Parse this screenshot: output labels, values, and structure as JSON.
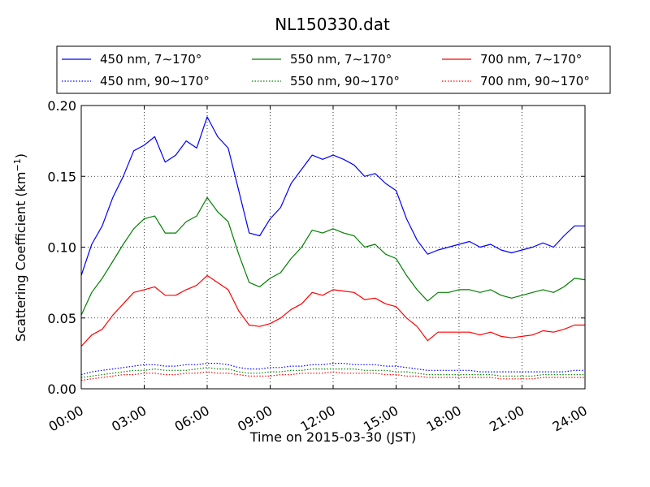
{
  "chart_data": {
    "type": "line",
    "title": "NL150330.dat",
    "xlabel": "Time on 2015-03-30 (JST)",
    "ylabel": "Scattering Coefficient (km",
    "ylabel_sup": "−1",
    "ylabel_close": ")",
    "xlim": [
      0,
      24
    ],
    "ylim": [
      0,
      0.2
    ],
    "x_unit": "hours",
    "grid": true,
    "grid_style": "dotted",
    "legend_position": "top",
    "x_ticks": [
      {
        "value": 0,
        "label": "00:00"
      },
      {
        "value": 3,
        "label": "03:00"
      },
      {
        "value": 6,
        "label": "06:00"
      },
      {
        "value": 9,
        "label": "09:00"
      },
      {
        "value": 12,
        "label": "12:00"
      },
      {
        "value": 15,
        "label": "15:00"
      },
      {
        "value": 18,
        "label": "18:00"
      },
      {
        "value": 21,
        "label": "21:00"
      },
      {
        "value": 24,
        "label": "24:00"
      }
    ],
    "y_ticks": [
      {
        "value": 0,
        "label": "0.00"
      },
      {
        "value": 0.05,
        "label": "0.05"
      },
      {
        "value": 0.1,
        "label": "0.10"
      },
      {
        "value": 0.15,
        "label": "0.15"
      },
      {
        "value": 0.2,
        "label": "0.20"
      }
    ],
    "x": [
      0,
      0.5,
      1,
      1.5,
      2,
      2.5,
      3,
      3.5,
      4,
      4.5,
      5,
      5.5,
      6,
      6.5,
      7,
      7.5,
      8,
      8.5,
      9,
      9.5,
      10,
      10.5,
      11,
      11.5,
      12,
      12.5,
      13,
      13.5,
      14,
      14.5,
      15,
      15.5,
      16,
      16.5,
      17,
      17.5,
      18,
      18.5,
      19,
      19.5,
      20,
      20.5,
      21,
      21.5,
      22,
      22.5,
      23,
      23.5,
      24
    ],
    "series": [
      {
        "name": "450 nm, 7∼170°",
        "color": "#0000ff",
        "style": "solid",
        "values": [
          0.08,
          0.102,
          0.115,
          0.135,
          0.15,
          0.168,
          0.172,
          0.178,
          0.16,
          0.165,
          0.175,
          0.17,
          0.192,
          0.178,
          0.17,
          0.14,
          0.11,
          0.108,
          0.12,
          0.128,
          0.145,
          0.155,
          0.165,
          0.162,
          0.165,
          0.162,
          0.158,
          0.15,
          0.152,
          0.145,
          0.14,
          0.12,
          0.105,
          0.095,
          0.098,
          0.1,
          0.102,
          0.104,
          0.1,
          0.102,
          0.098,
          0.096,
          0.098,
          0.1,
          0.103,
          0.1,
          0.108,
          0.115,
          0.115
        ]
      },
      {
        "name": "550 nm, 7∼170°",
        "color": "#008000",
        "style": "solid",
        "values": [
          0.052,
          0.068,
          0.078,
          0.09,
          0.102,
          0.113,
          0.12,
          0.122,
          0.11,
          0.11,
          0.118,
          0.122,
          0.135,
          0.125,
          0.118,
          0.095,
          0.075,
          0.072,
          0.078,
          0.082,
          0.092,
          0.1,
          0.112,
          0.11,
          0.113,
          0.11,
          0.108,
          0.1,
          0.102,
          0.095,
          0.092,
          0.08,
          0.07,
          0.062,
          0.068,
          0.068,
          0.07,
          0.07,
          0.068,
          0.07,
          0.066,
          0.064,
          0.066,
          0.068,
          0.07,
          0.068,
          0.072,
          0.078,
          0.077
        ]
      },
      {
        "name": "700 nm, 7∼170°",
        "color": "#ff0000",
        "style": "solid",
        "values": [
          0.03,
          0.038,
          0.042,
          0.052,
          0.06,
          0.068,
          0.07,
          0.072,
          0.066,
          0.066,
          0.07,
          0.073,
          0.08,
          0.075,
          0.07,
          0.055,
          0.045,
          0.044,
          0.046,
          0.05,
          0.056,
          0.06,
          0.068,
          0.066,
          0.07,
          0.069,
          0.068,
          0.063,
          0.064,
          0.06,
          0.058,
          0.05,
          0.044,
          0.034,
          0.04,
          0.04,
          0.04,
          0.04,
          0.038,
          0.04,
          0.037,
          0.036,
          0.037,
          0.038,
          0.041,
          0.04,
          0.042,
          0.045,
          0.045
        ]
      },
      {
        "name": "450 nm, 90∼170°",
        "color": "#0000ff",
        "style": "dotted",
        "values": [
          0.01,
          0.012,
          0.013,
          0.014,
          0.015,
          0.016,
          0.017,
          0.017,
          0.016,
          0.016,
          0.017,
          0.017,
          0.018,
          0.018,
          0.017,
          0.015,
          0.014,
          0.014,
          0.015,
          0.015,
          0.016,
          0.016,
          0.017,
          0.017,
          0.018,
          0.018,
          0.017,
          0.017,
          0.017,
          0.016,
          0.016,
          0.015,
          0.014,
          0.013,
          0.013,
          0.013,
          0.013,
          0.013,
          0.012,
          0.012,
          0.012,
          0.012,
          0.012,
          0.012,
          0.012,
          0.012,
          0.012,
          0.013,
          0.013
        ]
      },
      {
        "name": "550 nm, 90∼170°",
        "color": "#008000",
        "style": "dotted",
        "values": [
          0.008,
          0.009,
          0.01,
          0.011,
          0.012,
          0.013,
          0.013,
          0.014,
          0.013,
          0.013,
          0.013,
          0.014,
          0.015,
          0.014,
          0.014,
          0.012,
          0.011,
          0.011,
          0.012,
          0.012,
          0.013,
          0.013,
          0.014,
          0.014,
          0.014,
          0.014,
          0.014,
          0.013,
          0.013,
          0.013,
          0.012,
          0.012,
          0.011,
          0.01,
          0.01,
          0.01,
          0.01,
          0.01,
          0.01,
          0.01,
          0.009,
          0.009,
          0.009,
          0.009,
          0.01,
          0.01,
          0.01,
          0.01,
          0.01
        ]
      },
      {
        "name": "700 nm, 90∼170°",
        "color": "#ff0000",
        "style": "dotted",
        "values": [
          0.006,
          0.007,
          0.008,
          0.009,
          0.01,
          0.01,
          0.011,
          0.011,
          0.01,
          0.01,
          0.011,
          0.011,
          0.012,
          0.011,
          0.011,
          0.01,
          0.009,
          0.009,
          0.009,
          0.01,
          0.01,
          0.011,
          0.011,
          0.011,
          0.012,
          0.011,
          0.011,
          0.011,
          0.011,
          0.01,
          0.01,
          0.009,
          0.009,
          0.008,
          0.008,
          0.008,
          0.008,
          0.008,
          0.008,
          0.008,
          0.007,
          0.007,
          0.007,
          0.007,
          0.008,
          0.008,
          0.008,
          0.008,
          0.008
        ]
      }
    ]
  }
}
